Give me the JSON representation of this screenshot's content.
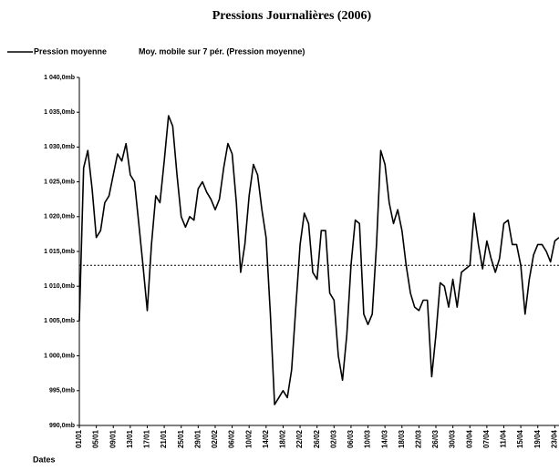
{
  "chart_data": {
    "type": "line",
    "title": "Pressions Journalières (2006)",
    "x_label": "Dates",
    "categories": [
      "01/01",
      null,
      null,
      null,
      "05/01",
      null,
      null,
      null,
      "09/01",
      null,
      null,
      null,
      "13/01",
      null,
      null,
      null,
      "17/01",
      null,
      null,
      null,
      "21/01",
      null,
      null,
      null,
      "25/01",
      null,
      null,
      null,
      "29/01",
      null,
      null,
      null,
      "02/02",
      null,
      null,
      null,
      "06/02",
      null,
      null,
      null,
      "10/02",
      null,
      null,
      null,
      "14/02",
      null,
      null,
      null,
      "18/02",
      null,
      null,
      null,
      "22/02",
      null,
      null,
      null,
      "26/02",
      null,
      null,
      null,
      "02/03",
      null,
      null,
      null,
      "06/03",
      null,
      null,
      null,
      "10/03",
      null,
      null,
      null,
      "14/03",
      null,
      null,
      null,
      "18/03",
      null,
      null,
      null,
      "22/03",
      null,
      null,
      null,
      "26/03",
      null,
      null,
      null,
      "30/03",
      null,
      null,
      null,
      "03/04",
      null,
      null,
      null,
      "07/04",
      null,
      null,
      null,
      "11/04",
      null,
      null,
      null,
      "15/04",
      null,
      null,
      null,
      "19/04",
      null,
      null,
      null,
      "23/04",
      null
    ],
    "series": [
      {
        "name": "Pression moyenne",
        "color": "#000000",
        "values": [
          1005,
          1027,
          1029.5,
          1024,
          1017,
          1018,
          1022,
          1023,
          1026,
          1029,
          1028,
          1030.5,
          1026,
          1025,
          1019,
          1013,
          1006.5,
          1016,
          1023,
          1022,
          1028,
          1034.5,
          1033,
          1026,
          1020,
          1018.5,
          1020,
          1019.5,
          1024,
          1025,
          1023.5,
          1022.5,
          1021,
          1022.5,
          1027,
          1030.5,
          1029,
          1022,
          1012,
          1016,
          1023,
          1027.5,
          1026,
          1021,
          1017,
          1006,
          993,
          994,
          995,
          994,
          998,
          1007,
          1016,
          1020.5,
          1019,
          1012,
          1011,
          1018,
          1018,
          1009,
          1008,
          1000,
          996.5,
          1003,
          1013,
          1019.5,
          1019,
          1006,
          1004.5,
          1006,
          1016,
          1029.5,
          1027.5,
          1022,
          1019,
          1021,
          1018,
          1013,
          1009,
          1007,
          1006.5,
          1008,
          1008,
          997,
          1003,
          1010.5,
          1010,
          1007,
          1011,
          1007,
          1012,
          1012.5,
          1013,
          1020.5,
          1016,
          1012.5,
          1016.5,
          1014,
          1012,
          1014,
          1019,
          1019.5,
          1016,
          1016,
          1013,
          1006,
          1011,
          1014.5,
          1016,
          1016,
          1015,
          1013.5,
          1016.5,
          1017
        ]
      },
      {
        "name": "Moy. mobile sur 7 pér. (Pression moyenne)",
        "color": "#000000"
      }
    ],
    "reference_value": 1013,
    "ylim": [
      990,
      1040
    ],
    "yticks": [
      {
        "value": 990,
        "label": "990,0mb"
      },
      {
        "value": 995,
        "label": "995,0mb"
      },
      {
        "value": 1000,
        "label": "1 000,0mb"
      },
      {
        "value": 1005,
        "label": "1 005,0mb"
      },
      {
        "value": 1010,
        "label": "1 010,0mb"
      },
      {
        "value": 1015,
        "label": "1 015,0mb"
      },
      {
        "value": 1020,
        "label": "1 020,0mb"
      },
      {
        "value": 1025,
        "label": "1 025,0mb"
      },
      {
        "value": 1030,
        "label": "1 030,0mb"
      },
      {
        "value": 1035,
        "label": "1 035,0mb"
      },
      {
        "value": 1040,
        "label": "1 040,0mb"
      }
    ]
  }
}
